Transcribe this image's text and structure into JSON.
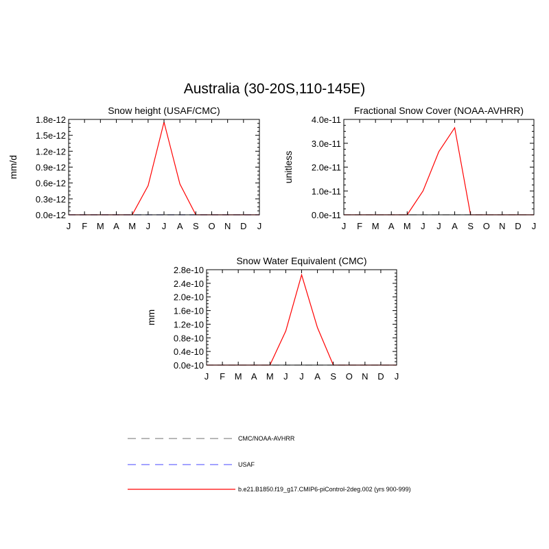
{
  "figure": {
    "title": "Australia (30-20S,110-145E)"
  },
  "colors": {
    "model": "#ff0000",
    "cmc_noaa": "#8c8c8c",
    "usaf": "#6b6bff",
    "axis": "#000000"
  },
  "legend": {
    "items": [
      {
        "label": "CMC/NOAA-AVHRR",
        "style": "dashed",
        "color": "#8c8c8c"
      },
      {
        "label": "USAF",
        "style": "dashed",
        "color": "#6b6bff"
      },
      {
        "label": "b.e21.B1850.f19_g17.CMIP6-piControl-2deg.002 (yrs 900-999)",
        "style": "solid",
        "color": "#ff0000"
      }
    ]
  },
  "chart_data": [
    {
      "type": "line",
      "title": "Snow height (USAF/CMC)",
      "xlabel": "",
      "ylabel": "mm/d",
      "categories": [
        "J",
        "F",
        "M",
        "A",
        "M",
        "J",
        "J",
        "A",
        "S",
        "O",
        "N",
        "D",
        "J"
      ],
      "ylim": [
        0,
        1.8e-12
      ],
      "yticks": [
        0,
        3e-13,
        6e-13,
        9e-13,
        1.2e-12,
        1.5e-12,
        1.8e-12
      ],
      "yticklabels": [
        "0.0e-12",
        "0.3e-12",
        "0.6e-12",
        "0.9e-12",
        "1.2e-12",
        "1.5e-12",
        "1.8e-12"
      ],
      "series": [
        {
          "name": "b.e21.B1850.f19_g17.CMIP6-piControl-2deg.002 (yrs 900-999)",
          "style": "solid",
          "color": "#ff0000",
          "values": [
            0,
            0,
            0,
            0,
            0,
            5.5e-13,
            1.75e-12,
            5.8e-13,
            0,
            0,
            0,
            0,
            0
          ]
        },
        {
          "name": "CMC/NOAA-AVHRR",
          "style": "dashed",
          "color": "#8c8c8c",
          "values": [
            0,
            0,
            0,
            0,
            0,
            0,
            0,
            0,
            0,
            0,
            0,
            0,
            0
          ]
        },
        {
          "name": "USAF",
          "style": "dashed",
          "color": "#6b6bff",
          "values": [
            0,
            0,
            0,
            0,
            0,
            0,
            0,
            0,
            0,
            0,
            0,
            0,
            0
          ]
        }
      ]
    },
    {
      "type": "line",
      "title": "Fractional Snow Cover (NOAA-AVHRR)",
      "xlabel": "",
      "ylabel": "unitless",
      "categories": [
        "J",
        "F",
        "M",
        "A",
        "M",
        "J",
        "J",
        "A",
        "S",
        "O",
        "N",
        "D",
        "J"
      ],
      "ylim": [
        0,
        4e-11
      ],
      "yticks": [
        0,
        1e-11,
        2e-11,
        3e-11,
        4e-11
      ],
      "yticklabels": [
        "0.0e-11",
        "1.0e-11",
        "2.0e-11",
        "3.0e-11",
        "4.0e-11"
      ],
      "series": [
        {
          "name": "b.e21.B1850.f19_g17.CMIP6-piControl-2deg.002 (yrs 900-999)",
          "style": "solid",
          "color": "#ff0000",
          "values": [
            0,
            0,
            0,
            0,
            0,
            1e-11,
            2.65e-11,
            3.65e-11,
            0,
            0,
            0,
            0,
            0
          ]
        },
        {
          "name": "CMC/NOAA-AVHRR",
          "style": "dashed",
          "color": "#8c8c8c",
          "values": [
            0,
            0,
            0,
            0,
            0,
            0,
            0,
            0,
            0,
            0,
            0,
            0,
            0
          ]
        }
      ]
    },
    {
      "type": "line",
      "title": "Snow Water Equivalent (CMC)",
      "xlabel": "",
      "ylabel": "mm",
      "categories": [
        "J",
        "F",
        "M",
        "A",
        "M",
        "J",
        "J",
        "A",
        "S",
        "O",
        "N",
        "D",
        "J"
      ],
      "ylim": [
        0,
        2.8e-10
      ],
      "yticks": [
        0,
        4e-11,
        8e-11,
        1.2e-10,
        1.6e-10,
        2e-10,
        2.4e-10,
        2.8e-10
      ],
      "yticklabels": [
        "0.0e-10",
        "0.4e-10",
        "0.8e-10",
        "1.2e-10",
        "1.6e-10",
        "2.0e-10",
        "2.4e-10",
        "2.8e-10"
      ],
      "series": [
        {
          "name": "b.e21.B1850.f19_g17.CMIP6-piControl-2deg.002 (yrs 900-999)",
          "style": "solid",
          "color": "#ff0000",
          "values": [
            0,
            0,
            0,
            0,
            0,
            1e-10,
            2.65e-10,
            1.1e-10,
            0,
            0,
            0,
            0,
            0
          ]
        },
        {
          "name": "CMC/NOAA-AVHRR",
          "style": "dashed",
          "color": "#8c8c8c",
          "values": [
            0,
            0,
            0,
            0,
            0,
            0,
            0,
            0,
            0,
            0,
            0,
            0,
            0
          ]
        }
      ]
    }
  ]
}
